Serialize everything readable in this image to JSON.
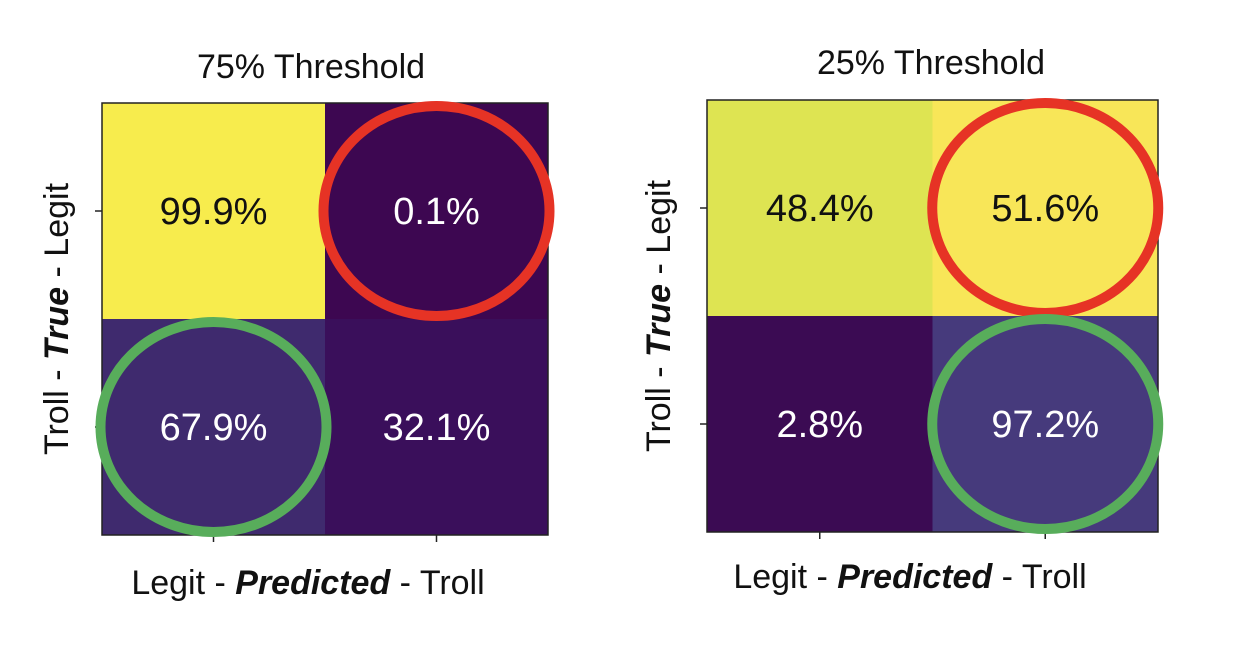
{
  "chart_data": [
    {
      "type": "heatmap",
      "title": "75% Threshold",
      "xlabel": {
        "left": "Legit - ",
        "emph": "Predicted",
        "right": " - Troll"
      },
      "ylabel": {
        "left": "Troll  - ",
        "emph": "True",
        "right": " -  Legit"
      },
      "rows": [
        "Legit",
        "Troll"
      ],
      "cols": [
        "Legit",
        "Troll"
      ],
      "values": [
        [
          99.9,
          0.1
        ],
        [
          67.9,
          32.1
        ]
      ],
      "labels": [
        [
          "99.9%",
          "0.1%"
        ],
        [
          "67.9%",
          "32.1%"
        ]
      ],
      "cell_colors": [
        [
          "#f7ec4d",
          "#3d0751"
        ],
        [
          "#3f2a6e",
          "#3a0f5b"
        ]
      ],
      "text_colors": [
        [
          "#111111",
          "#ffffff"
        ],
        [
          "#ffffff",
          "#ffffff"
        ]
      ],
      "highlights": [
        {
          "row": 0,
          "col": 1,
          "color": "#e63325"
        },
        {
          "row": 1,
          "col": 0,
          "color": "#58ad5b"
        }
      ]
    },
    {
      "type": "heatmap",
      "title": "25% Threshold",
      "xlabel": {
        "left": "Legit - ",
        "emph": "Predicted",
        "right": " - Troll"
      },
      "ylabel": {
        "left": "Troll  - ",
        "emph": "True",
        "right": " -  Legit"
      },
      "rows": [
        "Legit",
        "Troll"
      ],
      "cols": [
        "Legit",
        "Troll"
      ],
      "values": [
        [
          48.4,
          51.6
        ],
        [
          2.8,
          97.2
        ]
      ],
      "labels": [
        [
          "48.4%",
          "51.6%"
        ],
        [
          "2.8%",
          "97.2%"
        ]
      ],
      "cell_colors": [
        [
          "#dee452",
          "#f8e658"
        ],
        [
          "#3b0b53",
          "#463a7c"
        ]
      ],
      "text_colors": [
        [
          "#111111",
          "#111111"
        ],
        [
          "#ffffff",
          "#ffffff"
        ]
      ],
      "highlights": [
        {
          "row": 0,
          "col": 1,
          "color": "#e63325"
        },
        {
          "row": 1,
          "col": 1,
          "color": "#58ad5b"
        }
      ]
    }
  ]
}
